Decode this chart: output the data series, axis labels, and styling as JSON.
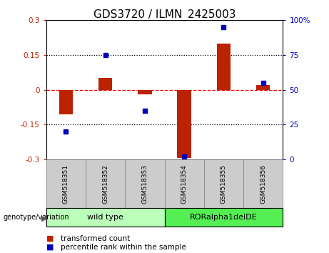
{
  "title": "GDS3720 / ILMN_2425003",
  "samples": [
    "GSM518351",
    "GSM518352",
    "GSM518353",
    "GSM518354",
    "GSM518355",
    "GSM518356"
  ],
  "transformed_count": [
    -0.105,
    0.05,
    -0.02,
    -0.295,
    0.2,
    0.02
  ],
  "percentile_rank": [
    20,
    75,
    35,
    2,
    95,
    55
  ],
  "ylim_left": [
    -0.3,
    0.3
  ],
  "ylim_right": [
    0,
    100
  ],
  "yticks_left": [
    -0.3,
    -0.15,
    0,
    0.15,
    0.3
  ],
  "yticks_right": [
    0,
    25,
    50,
    75,
    100
  ],
  "ytick_labels_right": [
    "0",
    "25",
    "50",
    "75",
    "100%"
  ],
  "hlines": [
    -0.15,
    0,
    0.15
  ],
  "hline_styles": [
    "dotted",
    "dashed",
    "dotted"
  ],
  "hline_colors": [
    "black",
    "red",
    "black"
  ],
  "bar_color": "#bb2200",
  "scatter_color": "#0000bb",
  "group_labels": [
    "wild type",
    "RORalpha1delDE"
  ],
  "group_ranges": [
    [
      0,
      3
    ],
    [
      3,
      6
    ]
  ],
  "group_color_wt": "#bbffbb",
  "group_color_mut": "#55ee55",
  "sample_box_color": "#cccccc",
  "genotype_label": "genotype/variation",
  "legend_bar_label": "transformed count",
  "legend_scatter_label": "percentile rank within the sample",
  "bar_width": 0.35,
  "scatter_size": 25,
  "title_fontsize": 11,
  "tick_fontsize": 7.5,
  "label_fontsize": 7.5,
  "legend_fontsize": 7.5
}
